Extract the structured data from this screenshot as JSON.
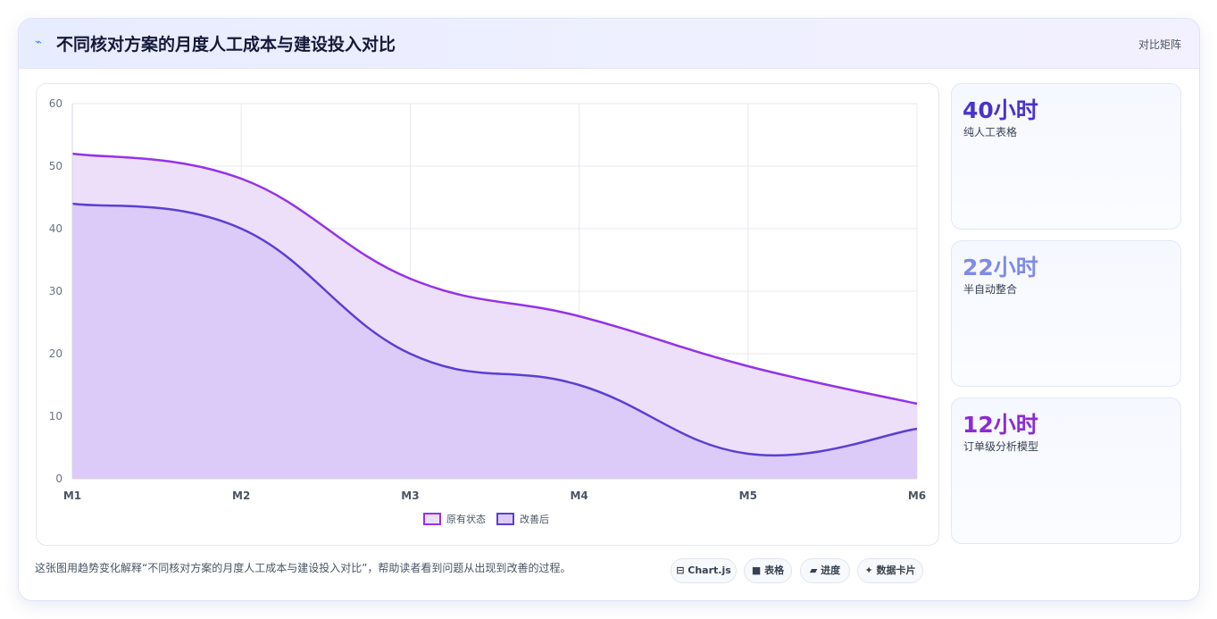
{
  "header": {
    "title_icon": "sparkline-icon",
    "title": "不同核对方案的月度人工成本与建设投入对比",
    "view_link": "对比矩阵"
  },
  "chart_data": {
    "type": "area",
    "x": [
      "M1",
      "M2",
      "M3",
      "M4",
      "M5",
      "M6"
    ],
    "series": [
      {
        "name": "原有状态",
        "values": [
          52,
          48,
          32,
          26,
          18,
          12
        ],
        "color": "#9333ea",
        "fill": "#eddffa"
      },
      {
        "name": "改善后",
        "values": [
          44,
          40,
          20,
          15,
          4,
          8
        ],
        "color": "#5b3fd4",
        "fill": "#dccbf8"
      }
    ],
    "ylim": [
      0,
      60
    ],
    "yticks": [
      0,
      10,
      20,
      30,
      40,
      50,
      60
    ],
    "grid": true,
    "legend": "bottom-center",
    "smooth": true
  },
  "stats": [
    {
      "value": "40小时",
      "label": "纯人工表格",
      "color": "#4a33c9"
    },
    {
      "value": "22小时",
      "label": "半自动整合",
      "color": "#7f8be6"
    },
    {
      "value": "12小时",
      "label": "订单级分析模型",
      "color": "#8a2bd6"
    }
  ],
  "footer": {
    "description": "这张图用趋势变化解释“不同核对方案的月度人工成本与建设投入对比”，帮助读者看到问题从出现到改善的过程。",
    "pills": [
      {
        "icon": "chart-icon",
        "glyph": "⊟",
        "label": "Chart.js"
      },
      {
        "icon": "table-icon",
        "glyph": "■",
        "label": "表格"
      },
      {
        "icon": "progress-icon",
        "glyph": "▰",
        "label": "进度"
      },
      {
        "icon": "cards-icon",
        "glyph": "✦",
        "label": "数据卡片"
      }
    ]
  }
}
